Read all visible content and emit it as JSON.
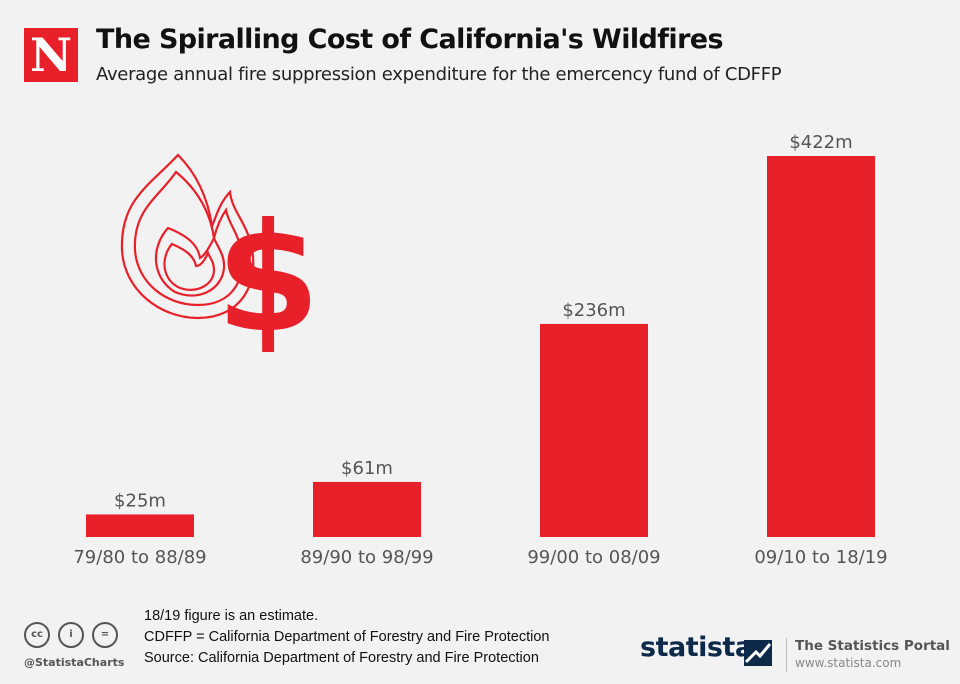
{
  "brand": {
    "publisher_logo_letter": "N",
    "accent_color": "#e8202a"
  },
  "header": {
    "title": "The Spiralling Cost of California's Wildfires",
    "subtitle": "Average annual fire suppression expenditure for the emercency fund of CDFFP"
  },
  "chart_data": {
    "type": "bar",
    "title": "The Spiralling Cost of California's Wildfires",
    "subtitle": "Average annual fire suppression expenditure for the emercency fund of CDFFP",
    "categories": [
      "79/80 to 88/89",
      "89/90 to 98/99",
      "99/00 to 08/09",
      "09/10 to 18/19"
    ],
    "values": [
      25,
      61,
      236,
      422
    ],
    "value_labels": [
      "$25m",
      "$61m",
      "$236m",
      "$422m"
    ],
    "unit": "million US$",
    "xlabel": "",
    "ylabel": "",
    "ylim": [
      0,
      422
    ],
    "grid": false,
    "legend": "none",
    "bar_color": "#e8202a"
  },
  "illustration": {
    "name": "flame-dollar-icon",
    "color": "#e8202a"
  },
  "notes": [
    "18/19 figure is an estimate.",
    "CDFFP = California Department of Forestry and Fire Protection",
    "Source: California Department of Forestry and Fire Protection"
  ],
  "footer": {
    "license_icons": [
      "cc-icon",
      "attribution-icon",
      "no-derivatives-icon"
    ],
    "license_icon_texts": [
      "cc",
      "i",
      "="
    ],
    "handle": "@StatistaCharts",
    "statista_wordmark": "statista",
    "portal_title": "The Statistics Portal",
    "portal_url": "www.statista.com"
  }
}
